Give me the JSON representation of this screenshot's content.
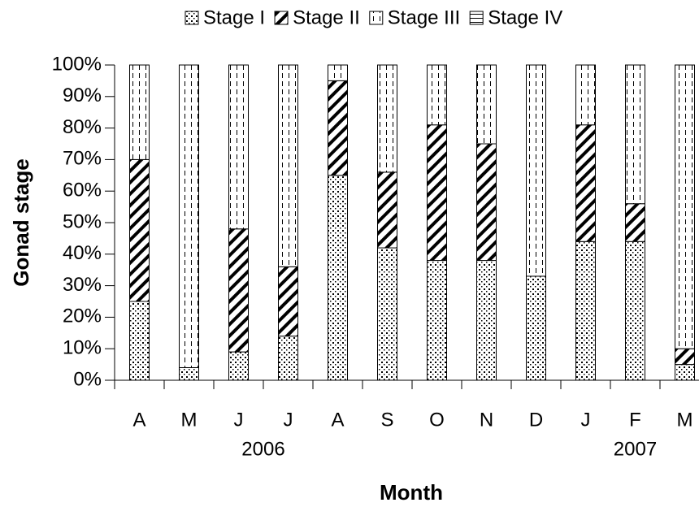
{
  "chart_data": {
    "type": "stacked_bar",
    "y_label": "Gonad stage",
    "x_label": "Month",
    "categories": [
      "A",
      "M",
      "J",
      "J",
      "A",
      "S",
      "O",
      "N",
      "D",
      "J",
      "F",
      "M"
    ],
    "group_labels": [
      {
        "label": "2006",
        "at": 2.5
      },
      {
        "label": "2007",
        "at": 10
      }
    ],
    "series": [
      {
        "name": "Stage I",
        "color": "#000000",
        "pattern": "dots",
        "values": [
          25,
          4,
          9,
          14,
          65,
          42,
          38,
          38,
          33,
          44,
          44,
          5
        ]
      },
      {
        "name": "Stage II",
        "color": "#000000",
        "pattern": "hatch",
        "values": [
          45,
          0,
          39,
          22,
          30,
          24,
          43,
          37,
          0,
          37,
          12,
          5
        ]
      },
      {
        "name": "Stage III",
        "color": "#000000",
        "pattern": "dashes",
        "values": [
          30,
          96,
          52,
          64,
          5,
          34,
          19,
          25,
          67,
          19,
          44,
          90
        ]
      },
      {
        "name": "Stage IV",
        "color": "#000000",
        "pattern": "hlines",
        "values": [
          0,
          0,
          0,
          0,
          0,
          0,
          0,
          0,
          0,
          0,
          0,
          0
        ]
      }
    ],
    "ylim": [
      0,
      100
    ],
    "yticks": [
      {
        "value": 0,
        "label": "0%"
      },
      {
        "value": 10,
        "label": "10%"
      },
      {
        "value": 20,
        "label": "20%"
      },
      {
        "value": 30,
        "label": "30%"
      },
      {
        "value": 40,
        "label": "40%"
      },
      {
        "value": 50,
        "label": "50%"
      },
      {
        "value": 60,
        "label": "60%"
      },
      {
        "value": 70,
        "label": "70%"
      },
      {
        "value": 80,
        "label": "80%"
      },
      {
        "value": 90,
        "label": "90%"
      },
      {
        "value": 100,
        "label": "100%"
      }
    ],
    "legend": "top",
    "grid": false
  }
}
